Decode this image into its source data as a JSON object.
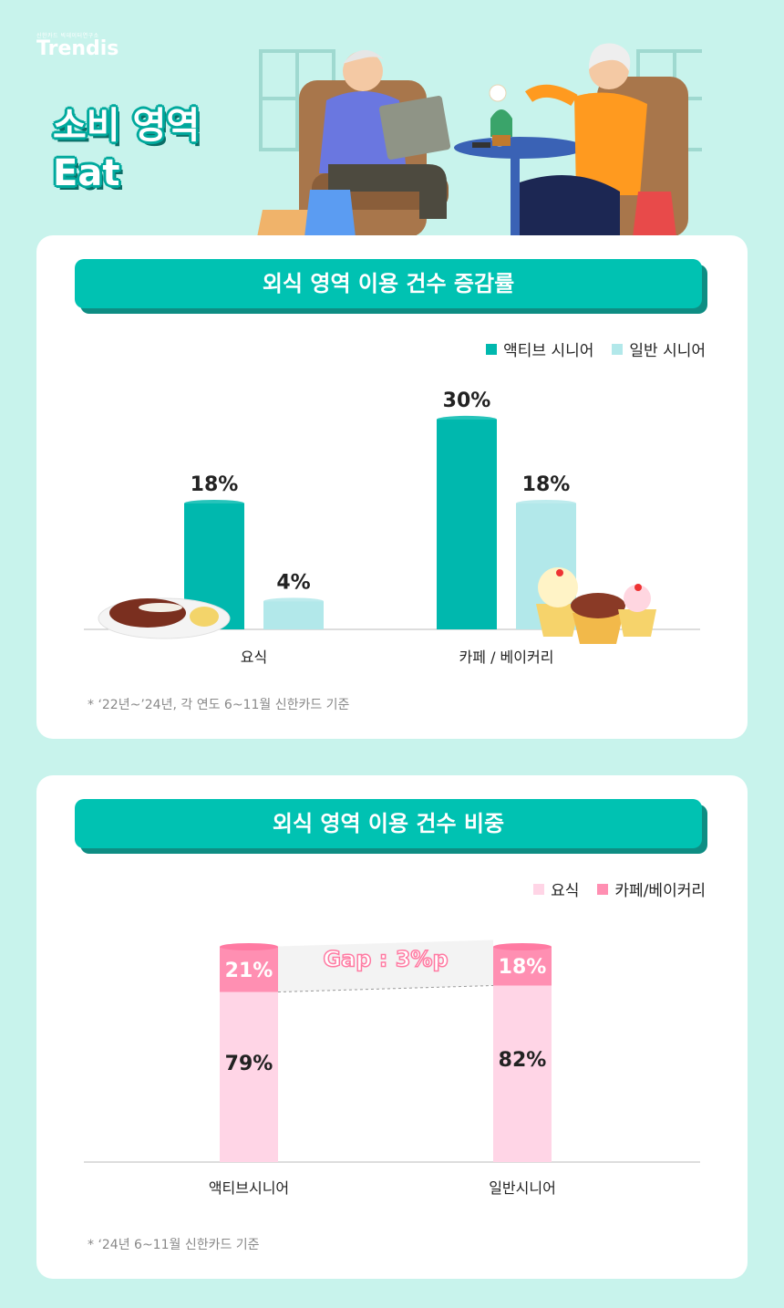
{
  "brand": {
    "tagline": "신한카드 빅데이터연구소",
    "logo": "Trendis"
  },
  "hero": {
    "line1": "소비 영역",
    "line2": "Eat"
  },
  "colors": {
    "teal": "#00b8ae",
    "light_teal": "#b2e8ea",
    "pink_light": "#ffd5e6",
    "pink": "#ff8fb2",
    "banner": "#00c2b2"
  },
  "chart_data": [
    {
      "type": "bar",
      "title": "외식 영역 이용 건수 증감률",
      "categories": [
        "요식",
        "카페/베이커리"
      ],
      "category_labels": [
        "요식",
        "카페 / 베이커리"
      ],
      "series": [
        {
          "name": "액티브 시니어",
          "values": [
            18,
            30
          ],
          "labels": [
            "18%",
            "30%"
          ],
          "color": "#00b8ae"
        },
        {
          "name": "일반 시니어",
          "values": [
            4,
            18
          ],
          "labels": [
            "4%",
            "18%"
          ],
          "color": "#b2e8ea"
        }
      ],
      "unit": "%",
      "footnote": "* ‘22년~’24년, 각 연도 6~11월 신한카드 기준"
    },
    {
      "type": "bar",
      "stacked": true,
      "title": "외식 영역 이용 건수 비중",
      "categories": [
        "액티브시니어",
        "일반시니어"
      ],
      "series": [
        {
          "name": "요식",
          "values": [
            79,
            82
          ],
          "labels": [
            "79%",
            "82%"
          ],
          "color": "#ffd5e6"
        },
        {
          "name": "카페/베이커리",
          "values": [
            21,
            18
          ],
          "labels": [
            "21%",
            "18%"
          ],
          "color": "#ff8fb2"
        }
      ],
      "unit": "%",
      "annotation": "Gap : 3%p",
      "footnote": "* ‘24년 6~11월 신한카드 기준"
    }
  ]
}
